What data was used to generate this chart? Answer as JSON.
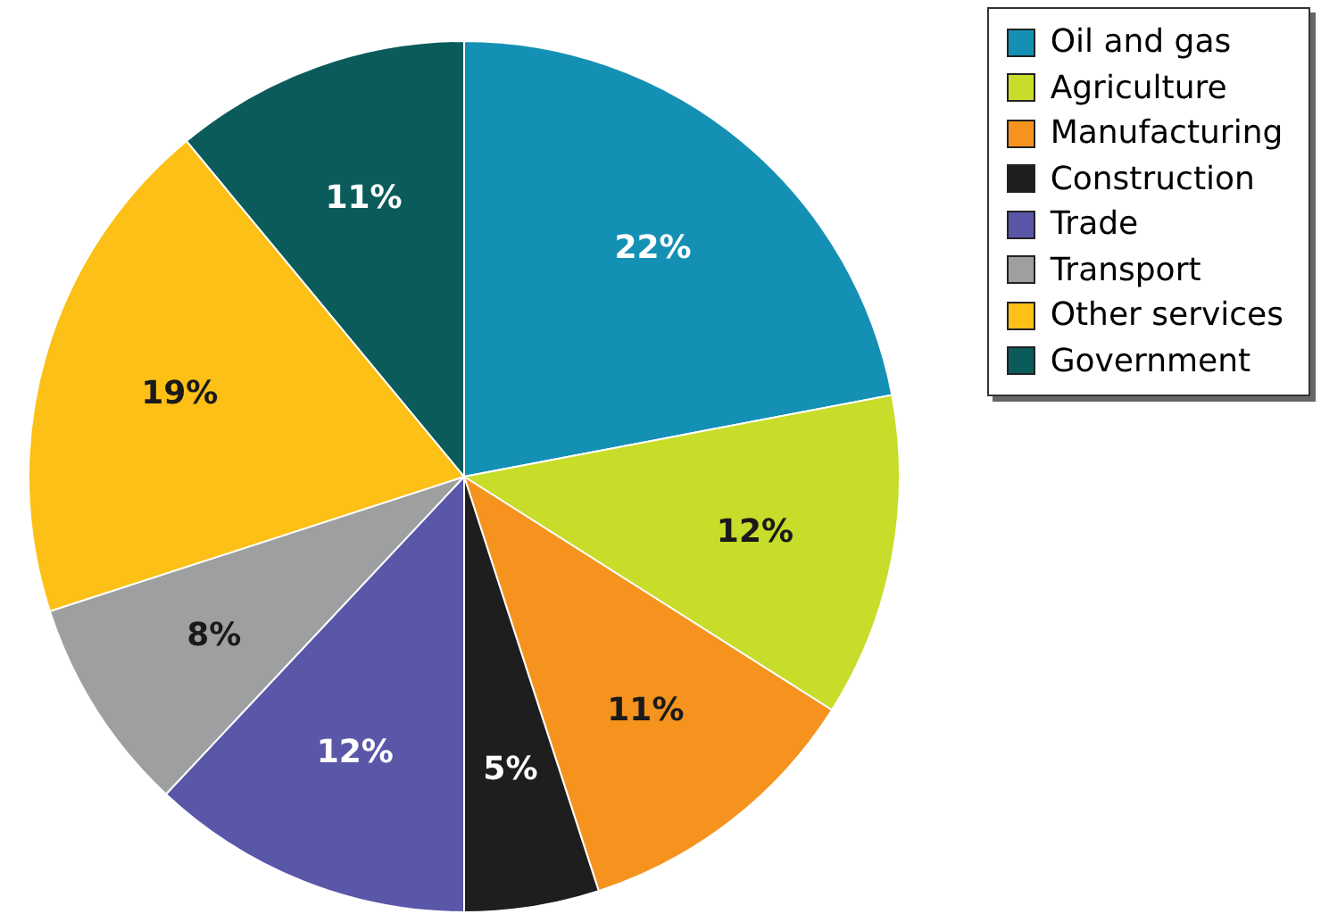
{
  "chart_data": {
    "type": "pie",
    "categories": [
      "Oil and gas",
      "Agriculture",
      "Manufacturing",
      "Construction",
      "Trade",
      "Transport",
      "Other services",
      "Government"
    ],
    "values": [
      22,
      12,
      11,
      5,
      12,
      8,
      19,
      11
    ],
    "value_labels": [
      "22%",
      "12%",
      "11%",
      "5%",
      "12%",
      "8%",
      "19%",
      "11%"
    ],
    "colors": [
      "#1590b5",
      "#c8dc2a",
      "#f5931e",
      "#1e1e1e",
      "#5a56a8",
      "#9d9fa1",
      "#fcc016",
      "#0b5b5b"
    ],
    "legend": "top right"
  }
}
